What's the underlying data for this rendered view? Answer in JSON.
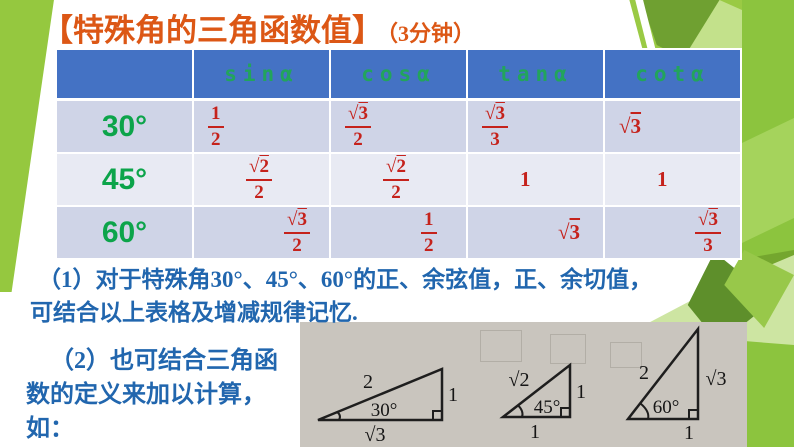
{
  "slide": {
    "title": "【特殊角的三角函数值】",
    "title_suffix": "（3分钟）"
  },
  "table": {
    "corner": "",
    "headers": [
      "sinα",
      "cosα",
      "tanα",
      "cotα"
    ],
    "rows": [
      {
        "angle": "30°",
        "values": [
          "1/2",
          "√3/2",
          "√3/3",
          "√3"
        ]
      },
      {
        "angle": "45°",
        "values": [
          "√2/2",
          "√2/2",
          "1",
          "1"
        ]
      },
      {
        "angle": "60°",
        "values": [
          "√3/2",
          "1/2",
          "√3",
          "√3/3"
        ]
      }
    ]
  },
  "notes": {
    "note1": {
      "lines": [
        "（1）对于特殊角30°、45°、60°的正、余弦值，正、余切值，",
        "可结合以上表格及增减规律记忆."
      ]
    },
    "note2": {
      "lines": [
        "（2）也可结合三角函",
        "数的定义来加以计算，",
        "如："
      ]
    }
  },
  "figure": {
    "triangles": [
      {
        "angle_label": "30°",
        "hypotenuse": "2",
        "opposite": "1",
        "adjacent": "√3"
      },
      {
        "angle_label": "45°",
        "hypotenuse": "√2",
        "opposite": "1",
        "adjacent": "1"
      },
      {
        "angle_label": "60°",
        "hypotenuse": "2",
        "opposite": "√3",
        "adjacent": "1"
      }
    ]
  },
  "colors": {
    "title_orange": "#DC5715",
    "header_blue": "#4472C4",
    "header_text_green": "#22A45C",
    "angle_green": "#0CA44A",
    "value_red": "#C5221C",
    "body_text_blue": "#2166AE",
    "decoration_green": "#95C83F",
    "row_band_dark": "#CFD4E7",
    "row_band_light": "#E8EAF3",
    "photo_gray": "#C9C5BE"
  }
}
